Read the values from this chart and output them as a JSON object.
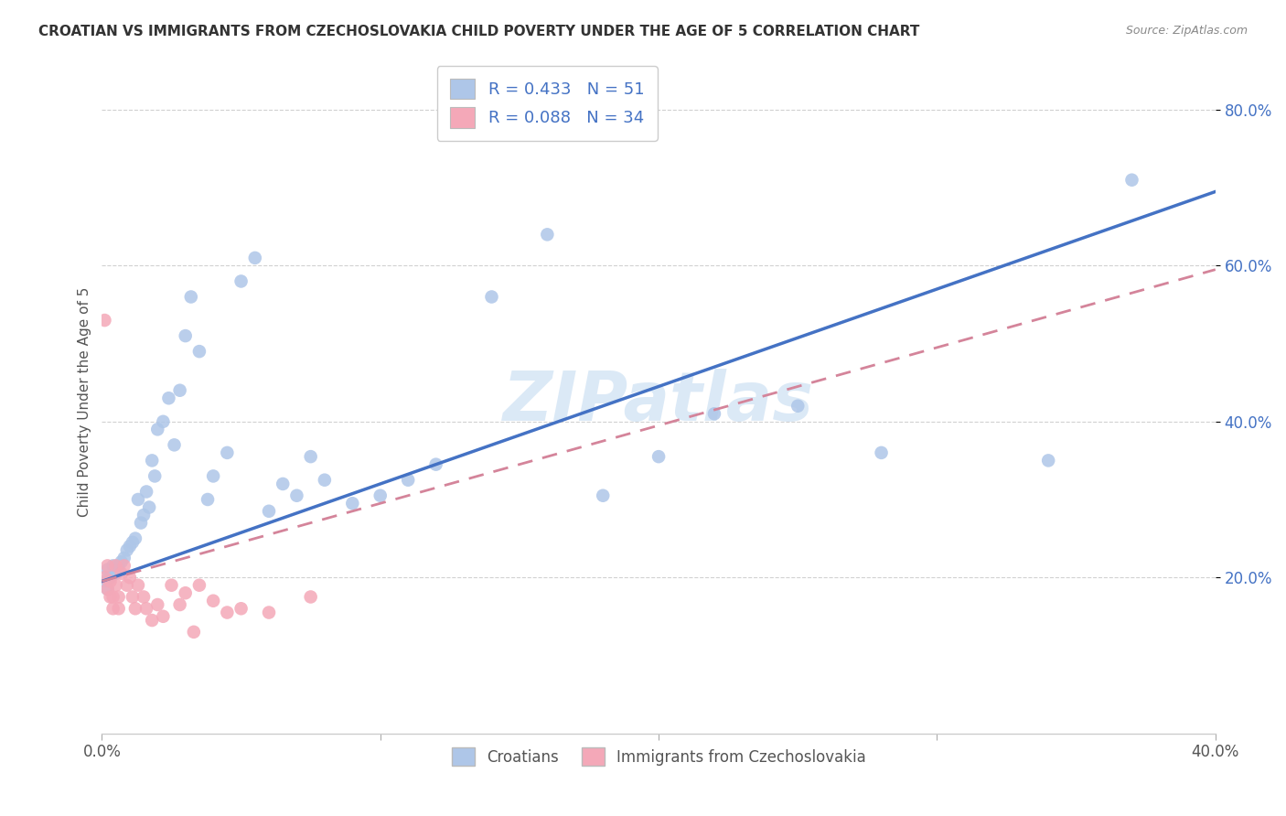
{
  "title": "CROATIAN VS IMMIGRANTS FROM CZECHOSLOVAKIA CHILD POVERTY UNDER THE AGE OF 5 CORRELATION CHART",
  "source": "Source: ZipAtlas.com",
  "xlabel": "",
  "ylabel": "Child Poverty Under the Age of 5",
  "xlim": [
    0.0,
    0.4
  ],
  "ylim": [
    0.0,
    0.85
  ],
  "xticks": [
    0.0,
    0.1,
    0.2,
    0.3,
    0.4
  ],
  "xtick_labels": [
    "0.0%",
    "",
    "",
    "",
    "40.0%"
  ],
  "ytick_labels": [
    "20.0%",
    "40.0%",
    "60.0%",
    "80.0%"
  ],
  "yticks": [
    0.2,
    0.4,
    0.6,
    0.8
  ],
  "background_color": "#ffffff",
  "watermark": "ZIPatlas",
  "croatian_color": "#aec6e8",
  "czech_color": "#f4a8b8",
  "croatian_line_color": "#4472c4",
  "czech_line_color": "#d4849a",
  "R_croatian": 0.433,
  "N_croatian": 51,
  "R_czech": 0.088,
  "N_czech": 34,
  "croatian_x": [
    0.001,
    0.002,
    0.002,
    0.003,
    0.004,
    0.005,
    0.006,
    0.007,
    0.008,
    0.009,
    0.01,
    0.011,
    0.012,
    0.013,
    0.014,
    0.015,
    0.016,
    0.017,
    0.018,
    0.019,
    0.02,
    0.022,
    0.024,
    0.026,
    0.028,
    0.03,
    0.032,
    0.035,
    0.038,
    0.04,
    0.045,
    0.05,
    0.055,
    0.06,
    0.065,
    0.07,
    0.075,
    0.08,
    0.09,
    0.1,
    0.11,
    0.12,
    0.14,
    0.16,
    0.18,
    0.2,
    0.22,
    0.25,
    0.28,
    0.34,
    0.37
  ],
  "croatian_y": [
    0.195,
    0.185,
    0.21,
    0.2,
    0.215,
    0.205,
    0.215,
    0.22,
    0.225,
    0.235,
    0.24,
    0.245,
    0.25,
    0.3,
    0.27,
    0.28,
    0.31,
    0.29,
    0.35,
    0.33,
    0.39,
    0.4,
    0.43,
    0.37,
    0.44,
    0.51,
    0.56,
    0.49,
    0.3,
    0.33,
    0.36,
    0.58,
    0.61,
    0.285,
    0.32,
    0.305,
    0.355,
    0.325,
    0.295,
    0.305,
    0.325,
    0.345,
    0.56,
    0.64,
    0.305,
    0.355,
    0.41,
    0.42,
    0.36,
    0.35,
    0.71
  ],
  "czech_x": [
    0.001,
    0.001,
    0.002,
    0.002,
    0.003,
    0.003,
    0.004,
    0.004,
    0.005,
    0.005,
    0.006,
    0.006,
    0.007,
    0.008,
    0.009,
    0.01,
    0.011,
    0.012,
    0.013,
    0.015,
    0.016,
    0.018,
    0.02,
    0.022,
    0.025,
    0.028,
    0.03,
    0.033,
    0.035,
    0.04,
    0.045,
    0.05,
    0.06,
    0.075
  ],
  "czech_y": [
    0.53,
    0.2,
    0.215,
    0.185,
    0.175,
    0.195,
    0.16,
    0.175,
    0.215,
    0.19,
    0.16,
    0.175,
    0.205,
    0.215,
    0.19,
    0.2,
    0.175,
    0.16,
    0.19,
    0.175,
    0.16,
    0.145,
    0.165,
    0.15,
    0.19,
    0.165,
    0.18,
    0.13,
    0.19,
    0.17,
    0.155,
    0.16,
    0.155,
    0.175
  ],
  "cr_line_x": [
    0.0,
    0.4
  ],
  "cr_line_y": [
    0.195,
    0.695
  ],
  "cz_line_x": [
    0.0,
    0.4
  ],
  "cz_line_y": [
    0.195,
    0.595
  ]
}
